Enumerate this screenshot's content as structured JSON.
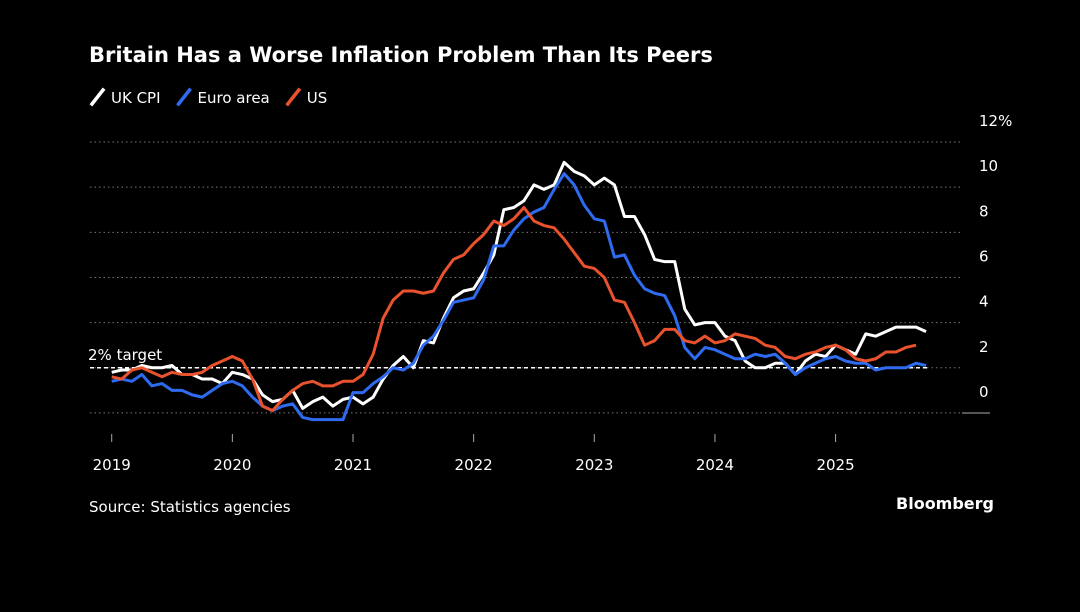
{
  "chart_data": {
    "type": "line",
    "title": "Britain Has a Worse Inflation Problem Than Its Peers",
    "source": "Source: Statistics agencies",
    "brand": "Bloomberg",
    "x": [
      2019,
      2019.083,
      2019.167,
      2019.25,
      2019.333,
      2019.417,
      2019.5,
      2019.583,
      2019.667,
      2019.75,
      2019.833,
      2019.917,
      2020,
      2020.083,
      2020.167,
      2020.25,
      2020.333,
      2020.417,
      2020.5,
      2020.583,
      2020.667,
      2020.75,
      2020.833,
      2020.917,
      2021,
      2021.083,
      2021.167,
      2021.25,
      2021.333,
      2021.417,
      2021.5,
      2021.583,
      2021.667,
      2021.75,
      2021.833,
      2021.917,
      2022,
      2022.083,
      2022.167,
      2022.25,
      2022.333,
      2022.417,
      2022.5,
      2022.583,
      2022.667,
      2022.75,
      2022.833,
      2022.917,
      2023,
      2023.083,
      2023.167,
      2023.25,
      2023.333,
      2023.417,
      2023.5,
      2023.583,
      2023.667,
      2023.75,
      2023.833,
      2023.917,
      2024,
      2024.083,
      2024.167,
      2024.25,
      2024.333,
      2024.417,
      2024.5,
      2024.583,
      2024.667,
      2024.75,
      2024.833,
      2024.917,
      2025,
      2025.083,
      2025.167,
      2025.25,
      2025.333,
      2025.417,
      2025.5,
      2025.583,
      2025.667,
      2025.75
    ],
    "series": [
      {
        "name": "UK CPI",
        "color": "#ffffff",
        "values": [
          1.8,
          1.9,
          1.9,
          2.1,
          2.0,
          2.0,
          2.1,
          1.7,
          1.7,
          1.5,
          1.5,
          1.3,
          1.8,
          1.7,
          1.5,
          0.8,
          0.5,
          0.6,
          1.0,
          0.2,
          0.5,
          0.7,
          0.3,
          0.6,
          0.7,
          0.4,
          0.7,
          1.5,
          2.1,
          2.5,
          2.0,
          3.2,
          3.1,
          4.2,
          5.1,
          5.4,
          5.5,
          6.2,
          7.0,
          9.0,
          9.1,
          9.4,
          10.1,
          9.9,
          10.1,
          11.1,
          10.7,
          10.5,
          10.1,
          10.4,
          10.1,
          8.7,
          8.7,
          7.9,
          6.8,
          6.7,
          6.7,
          4.6,
          3.9,
          4.0,
          4.0,
          3.4,
          3.2,
          2.3,
          2.0,
          2.0,
          2.2,
          2.2,
          1.7,
          2.3,
          2.6,
          2.5,
          3.0,
          2.8,
          2.6,
          3.5,
          3.4,
          3.6,
          3.8,
          3.8,
          3.8,
          3.6
        ]
      },
      {
        "name": "Euro area",
        "color": "#2f6bf0",
        "values": [
          1.4,
          1.5,
          1.4,
          1.7,
          1.2,
          1.3,
          1.0,
          1.0,
          0.8,
          0.7,
          1.0,
          1.3,
          1.4,
          1.2,
          0.7,
          0.3,
          0.1,
          0.3,
          0.4,
          -0.2,
          -0.3,
          -0.3,
          -0.3,
          -0.3,
          0.9,
          0.9,
          1.3,
          1.6,
          2.0,
          1.9,
          2.2,
          3.0,
          3.4,
          4.1,
          4.9,
          5.0,
          5.1,
          5.9,
          7.4,
          7.4,
          8.1,
          8.6,
          8.9,
          9.1,
          9.9,
          10.6,
          10.1,
          9.2,
          8.6,
          8.5,
          6.9,
          7.0,
          6.1,
          5.5,
          5.3,
          5.2,
          4.3,
          2.9,
          2.4,
          2.9,
          2.8,
          2.6,
          2.4,
          2.4,
          2.6,
          2.5,
          2.6,
          2.2,
          1.7,
          2.0,
          2.2,
          2.4,
          2.5,
          2.3,
          2.2,
          2.2,
          1.9,
          2.0,
          2.0,
          2.0,
          2.2,
          2.1
        ]
      },
      {
        "name": "US",
        "color": "#e8522c",
        "values": [
          1.6,
          1.5,
          1.9,
          2.0,
          1.8,
          1.6,
          1.8,
          1.7,
          1.7,
          1.8,
          2.1,
          2.3,
          2.5,
          2.3,
          1.5,
          0.3,
          0.1,
          0.6,
          1.0,
          1.3,
          1.4,
          1.2,
          1.2,
          1.4,
          1.4,
          1.7,
          2.6,
          4.2,
          5.0,
          5.4,
          5.4,
          5.3,
          5.4,
          6.2,
          6.8,
          7.0,
          7.5,
          7.9,
          8.5,
          8.3,
          8.6,
          9.1,
          8.5,
          8.3,
          8.2,
          7.7,
          7.1,
          6.5,
          6.4,
          6.0,
          5.0,
          4.9,
          4.0,
          3.0,
          3.2,
          3.7,
          3.7,
          3.2,
          3.1,
          3.4,
          3.1,
          3.2,
          3.5,
          3.4,
          3.3,
          3.0,
          2.9,
          2.5,
          2.4,
          2.6,
          2.7,
          2.9,
          3.0,
          2.8,
          2.4,
          2.3,
          2.4,
          2.7,
          2.7,
          2.9,
          3.0,
          null
        ]
      }
    ],
    "target": {
      "value": 2,
      "label": "2% target"
    },
    "xlim": [
      2018.82,
      2026.28
    ],
    "xticks": [
      2019,
      2020,
      2021,
      2022,
      2023,
      2024,
      2025
    ],
    "ylim": [
      -1.2,
      12.4
    ],
    "yticks": [
      0,
      2,
      4,
      6,
      8,
      10,
      {
        "value": 12,
        "label": "12%"
      }
    ],
    "grid": true,
    "legend": "top-left"
  }
}
